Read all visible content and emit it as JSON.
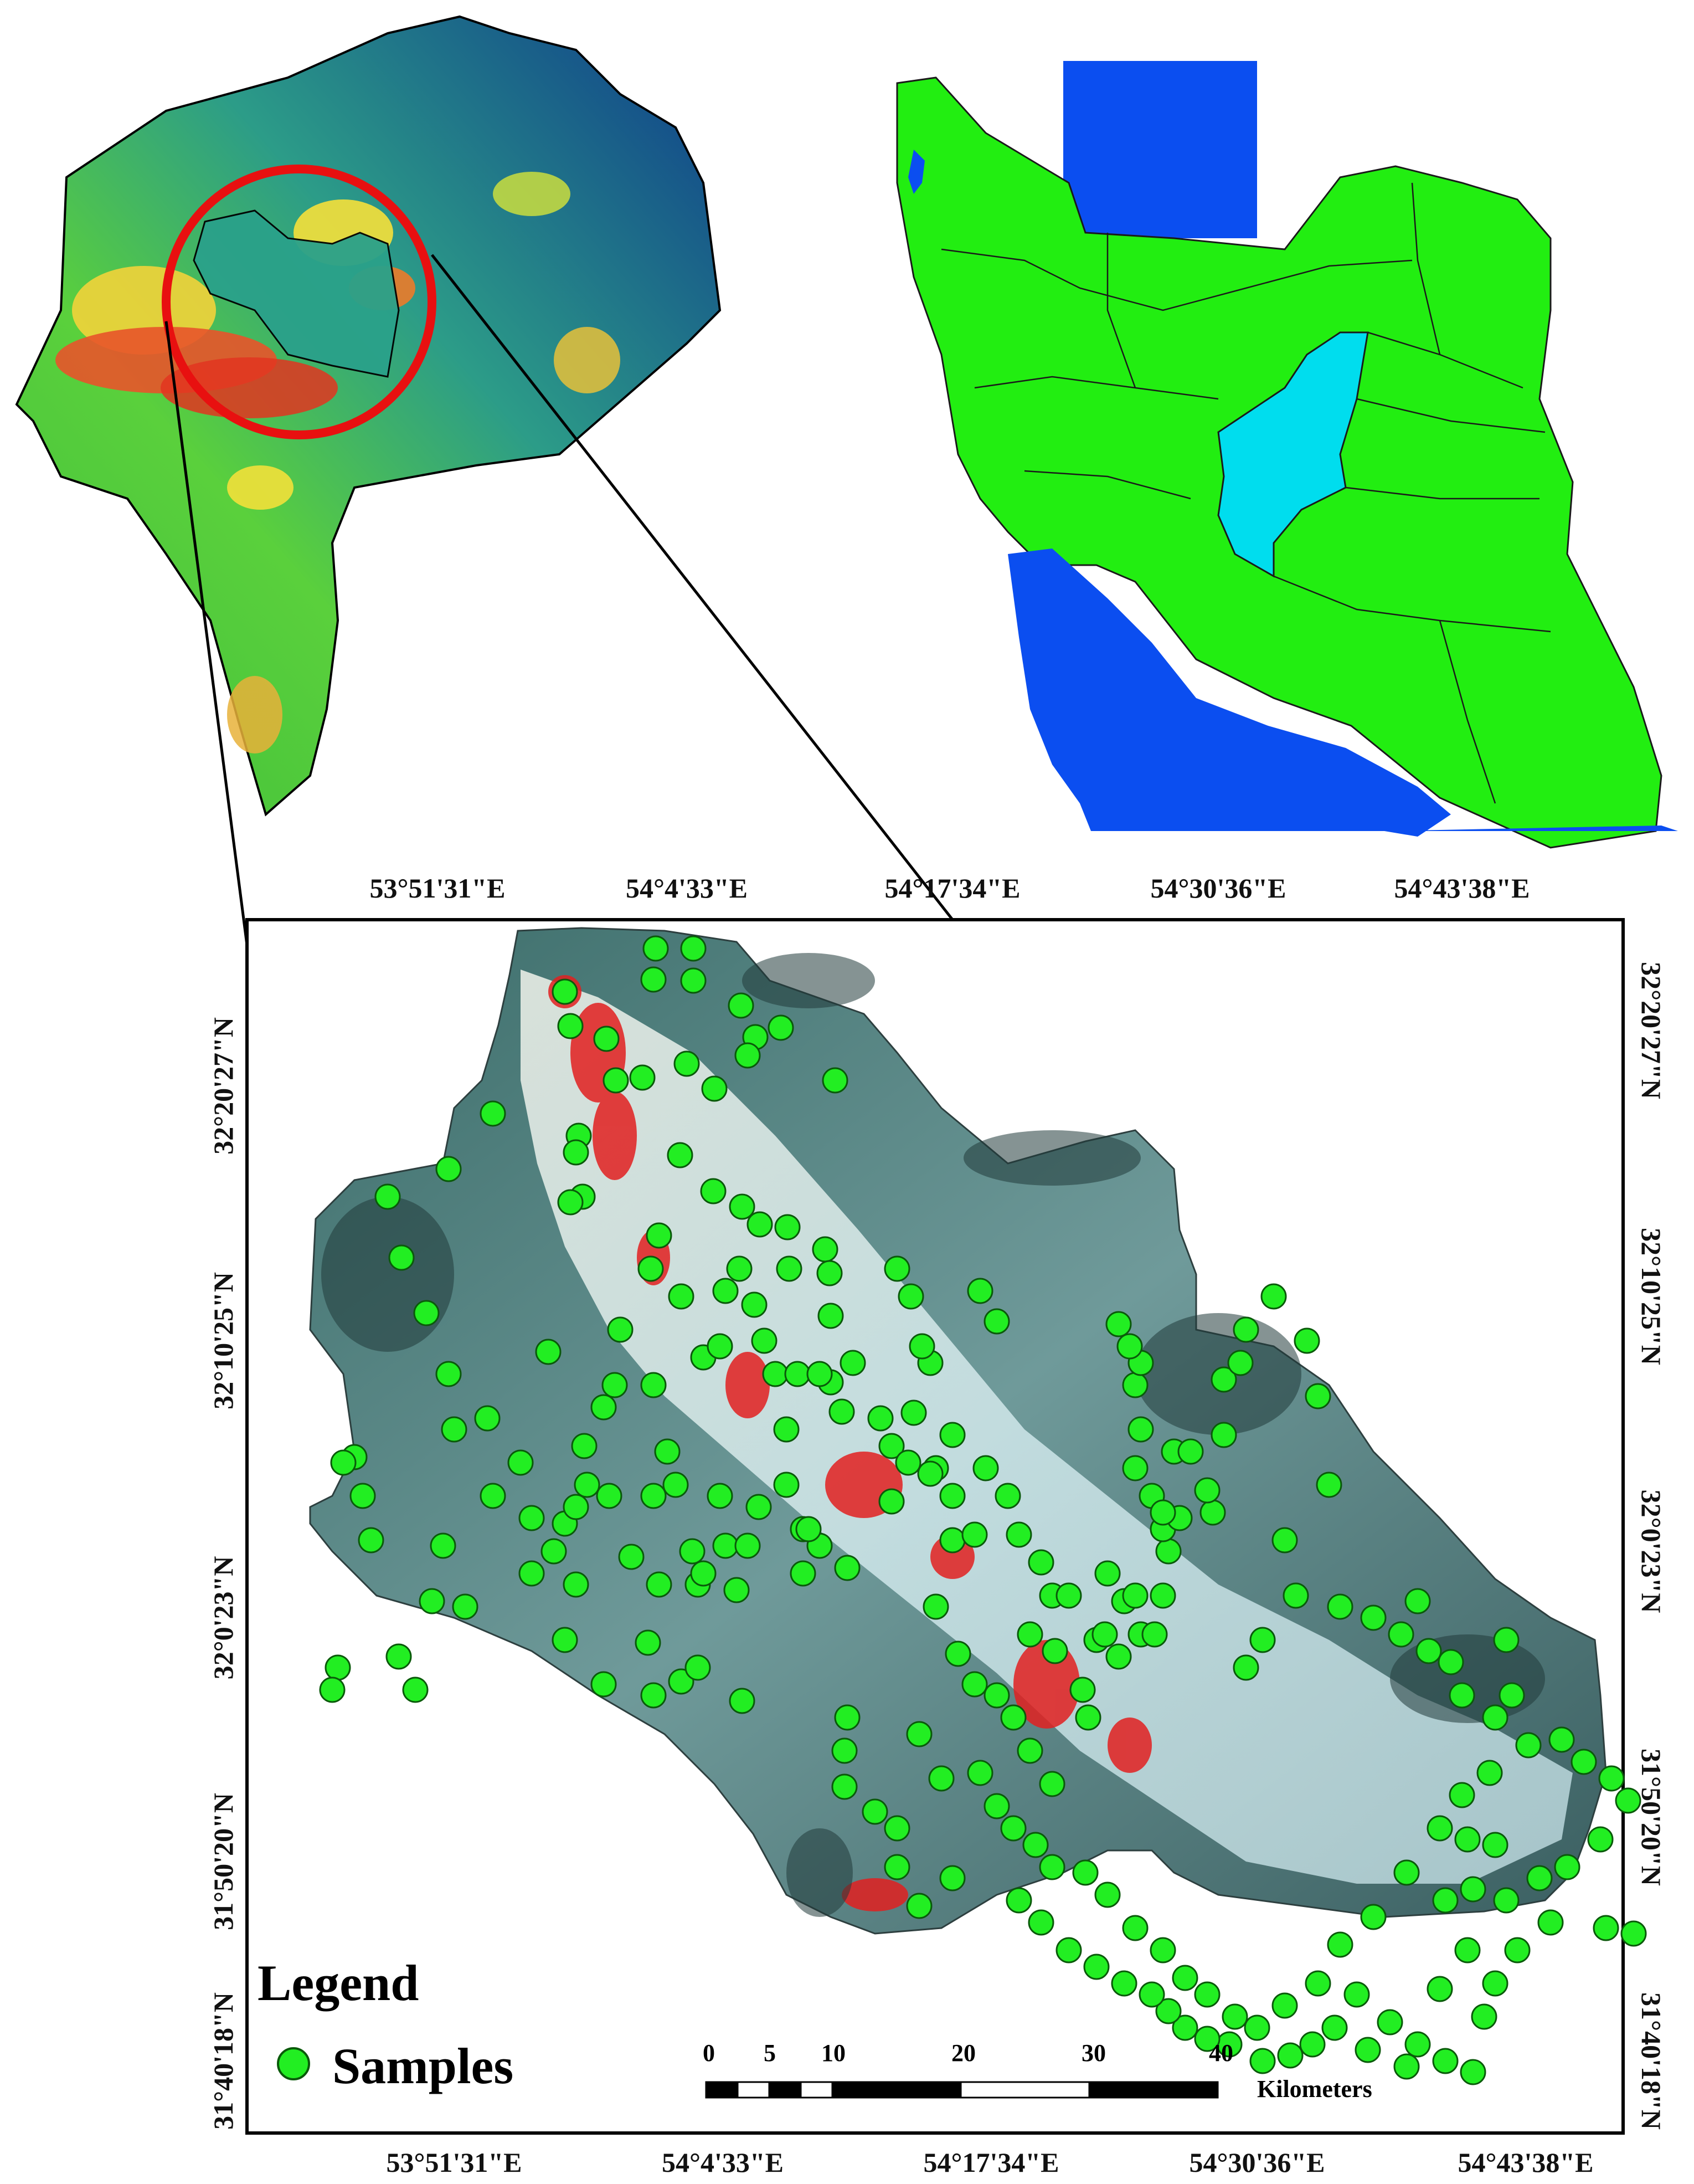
{
  "colors": {
    "province_fill": "#55c43a",
    "study_region_fill": "#1faa88",
    "country_fill": "#22ee11",
    "sea_fill": "#0b4ef0",
    "highlight_province": "#00ddee",
    "highlight_circle": "#e81010",
    "sample_point": "#22ee22",
    "urban_red": "#e22020",
    "frame": "#000000"
  },
  "main_map": {
    "top_lon_labels": [
      "53°51'31\"E",
      "54°4'33\"E",
      "54°17'34\"E",
      "54°30'36\"E",
      "54°43'38\"E"
    ],
    "bottom_lon_labels": [
      "53°51'31\"E",
      "54°4'33\"E",
      "54°17'34\"E",
      "54°30'36\"E",
      "54°43'38\"E"
    ],
    "left_lat_labels": [
      "32°20'27\"N",
      "32°10'25\"N",
      "32°0'23\"N",
      "31°50'20\"N",
      "31°40'18\"N"
    ],
    "right_lat_labels": [
      "32°20'27\"N",
      "32°10'25\"N",
      "32°0'23\"N",
      "31°50'20\"N",
      "31°40'18\"N"
    ]
  },
  "legend": {
    "title": "Legend",
    "samples_label": "Samples"
  },
  "scale_bar": {
    "ticks": [
      "0",
      "5",
      "10",
      "20",
      "30",
      "40"
    ],
    "unit": "Kilometers"
  },
  "samples": [
    [
      1184,
      1712
    ],
    [
      1252,
      1712
    ],
    [
      1180,
      1768
    ],
    [
      1252,
      1770
    ],
    [
      1364,
      1872
    ],
    [
      1350,
      1905
    ],
    [
      1020,
      1790
    ],
    [
      1030,
      1852
    ],
    [
      1095,
      1875
    ],
    [
      1112,
      1950
    ],
    [
      1160,
      1945
    ],
    [
      1240,
      1920
    ],
    [
      1290,
      1965
    ],
    [
      1508,
      1950
    ],
    [
      1410,
      1855
    ],
    [
      1338,
      1815
    ],
    [
      1045,
      2050
    ],
    [
      1040,
      2080
    ],
    [
      1052,
      2160
    ],
    [
      1030,
      2170
    ],
    [
      1228,
      2085
    ],
    [
      1288,
      2150
    ],
    [
      1340,
      2178
    ],
    [
      1422,
      2215
    ],
    [
      1372,
      2210
    ],
    [
      1335,
      2290
    ],
    [
      1425,
      2290
    ],
    [
      1490,
      2255
    ],
    [
      1498,
      2298
    ],
    [
      1500,
      2375
    ],
    [
      1620,
      2290
    ],
    [
      1190,
      2230
    ],
    [
      1175,
      2290
    ],
    [
      1230,
      2340
    ],
    [
      1310,
      2330
    ],
    [
      1362,
      2355
    ],
    [
      1380,
      2420
    ],
    [
      1500,
      2495
    ],
    [
      1520,
      2548
    ],
    [
      1590,
      2560
    ],
    [
      1680,
      2460
    ],
    [
      1645,
      2340
    ],
    [
      1665,
      2430
    ],
    [
      1770,
      2330
    ],
    [
      1800,
      2385
    ],
    [
      1610,
      2610
    ],
    [
      1640,
      2640
    ],
    [
      1690,
      2650
    ],
    [
      1400,
      2480
    ],
    [
      1270,
      2450
    ],
    [
      1180,
      2500
    ],
    [
      1090,
      2540
    ],
    [
      1055,
      2610
    ],
    [
      1060,
      2680
    ],
    [
      1020,
      2750
    ],
    [
      1140,
      2810
    ],
    [
      1190,
      2860
    ],
    [
      1260,
      2860
    ],
    [
      1170,
      2965
    ],
    [
      1230,
      3035
    ],
    [
      1270,
      2840
    ],
    [
      1330,
      2870
    ],
    [
      1420,
      2680
    ],
    [
      1450,
      2760
    ],
    [
      1450,
      2840
    ],
    [
      1480,
      2790
    ],
    [
      1530,
      2830
    ],
    [
      1610,
      2710
    ],
    [
      1720,
      2780
    ],
    [
      1820,
      2700
    ],
    [
      1780,
      2650
    ],
    [
      1690,
      2900
    ],
    [
      1730,
      2985
    ],
    [
      1760,
      3040
    ],
    [
      1800,
      3060
    ],
    [
      1860,
      2950
    ],
    [
      1900,
      2880
    ],
    [
      1980,
      2960
    ],
    [
      2020,
      2990
    ],
    [
      2060,
      2950
    ],
    [
      2030,
      2890
    ],
    [
      2085,
      2950
    ],
    [
      2110,
      2800
    ],
    [
      2100,
      2880
    ],
    [
      1995,
      2950
    ],
    [
      1905,
      2980
    ],
    [
      1955,
      3050
    ],
    [
      1965,
      3100
    ],
    [
      1830,
      3100
    ],
    [
      1860,
      3160
    ],
    [
      1900,
      3220
    ],
    [
      1770,
      3200
    ],
    [
      1700,
      3210
    ],
    [
      1660,
      3130
    ],
    [
      1530,
      3100
    ],
    [
      1525,
      3160
    ],
    [
      1525,
      3225
    ],
    [
      1580,
      3270
    ],
    [
      1620,
      3300
    ],
    [
      1620,
      3370
    ],
    [
      1660,
      3440
    ],
    [
      1720,
      3390
    ],
    [
      1340,
      3070
    ],
    [
      1260,
      3010
    ],
    [
      1180,
      3060
    ],
    [
      1090,
      3040
    ],
    [
      1000,
      2800
    ],
    [
      1020,
      2960
    ],
    [
      840,
      2900
    ],
    [
      960,
      2740
    ],
    [
      1040,
      2720
    ],
    [
      1100,
      2700
    ],
    [
      1205,
      2620
    ],
    [
      1300,
      2700
    ],
    [
      1370,
      2720
    ],
    [
      1460,
      2760
    ],
    [
      1300,
      2430
    ],
    [
      1120,
      2400
    ],
    [
      1110,
      2500
    ],
    [
      990,
      2440
    ],
    [
      820,
      2580
    ],
    [
      810,
      2480
    ],
    [
      770,
      2370
    ],
    [
      725,
      2270
    ],
    [
      700,
      2160
    ],
    [
      810,
      2110
    ],
    [
      890,
      2010
    ],
    [
      880,
      2560
    ],
    [
      940,
      2640
    ],
    [
      890,
      2700
    ],
    [
      960,
      2840
    ],
    [
      1040,
      2860
    ],
    [
      640,
      2630
    ],
    [
      655,
      2700
    ],
    [
      670,
      2780
    ],
    [
      800,
      2790
    ],
    [
      780,
      2890
    ],
    [
      720,
      2990
    ],
    [
      750,
      3050
    ],
    [
      610,
      3010
    ],
    [
      600,
      3050
    ],
    [
      620,
      2640
    ],
    [
      1180,
      2700
    ],
    [
      1220,
      2680
    ],
    [
      1250,
      2800
    ],
    [
      1310,
      2790
    ],
    [
      1350,
      2790
    ],
    [
      1420,
      2580
    ],
    [
      1440,
      2480
    ],
    [
      1480,
      2480
    ],
    [
      1540,
      2460
    ],
    [
      1650,
      2550
    ],
    [
      1720,
      2590
    ],
    [
      1680,
      2660
    ],
    [
      1720,
      2700
    ],
    [
      1760,
      2770
    ],
    [
      1840,
      2770
    ],
    [
      1880,
      2820
    ],
    [
      1930,
      2880
    ],
    [
      2000,
      2840
    ],
    [
      2050,
      2880
    ],
    [
      2100,
      2760
    ],
    [
      2130,
      2740
    ],
    [
      2190,
      2730
    ],
    [
      2180,
      2690
    ],
    [
      2120,
      2620
    ],
    [
      2060,
      2580
    ],
    [
      2050,
      2500
    ],
    [
      2060,
      2460
    ],
    [
      2040,
      2430
    ],
    [
      2020,
      2390
    ],
    [
      2050,
      2650
    ],
    [
      2080,
      2700
    ],
    [
      2100,
      2730
    ],
    [
      2150,
      2620
    ],
    [
      2210,
      2590
    ],
    [
      2210,
      2490
    ],
    [
      2240,
      2460
    ],
    [
      2250,
      2400
    ],
    [
      2300,
      2340
    ],
    [
      2360,
      2420
    ],
    [
      2380,
      2520
    ],
    [
      2400,
      2680
    ],
    [
      2320,
      2780
    ],
    [
      2340,
      2880
    ],
    [
      2280,
      2960
    ],
    [
      2250,
      3010
    ],
    [
      2420,
      2900
    ],
    [
      2480,
      2920
    ],
    [
      2530,
      2950
    ],
    [
      2560,
      2890
    ],
    [
      2580,
      2980
    ],
    [
      2620,
      3000
    ],
    [
      2640,
      3060
    ],
    [
      2700,
      3100
    ],
    [
      2730,
      3060
    ],
    [
      2720,
      2960
    ],
    [
      2690,
      3200
    ],
    [
      2640,
      3240
    ],
    [
      2600,
      3300
    ],
    [
      2650,
      3320
    ],
    [
      2700,
      3330
    ],
    [
      2760,
      3150
    ],
    [
      2820,
      3140
    ],
    [
      2860,
      3180
    ],
    [
      2910,
      3210
    ],
    [
      2940,
      3250
    ],
    [
      2890,
      3320
    ],
    [
      2830,
      3370
    ],
    [
      2780,
      3390
    ],
    [
      2720,
      3430
    ],
    [
      2660,
      3410
    ],
    [
      2610,
      3430
    ],
    [
      2540,
      3380
    ],
    [
      2480,
      3460
    ],
    [
      2420,
      3510
    ],
    [
      2380,
      3580
    ],
    [
      2320,
      3620
    ],
    [
      2270,
      3660
    ],
    [
      2230,
      3640
    ],
    [
      2180,
      3600
    ],
    [
      2140,
      3570
    ],
    [
      2100,
      3520
    ],
    [
      2050,
      3480
    ],
    [
      2000,
      3420
    ],
    [
      1960,
      3380
    ],
    [
      1900,
      3370
    ],
    [
      1870,
      3330
    ],
    [
      1830,
      3300
    ],
    [
      1800,
      3260
    ],
    [
      2450,
      3600
    ],
    [
      2510,
      3650
    ],
    [
      2560,
      3690
    ],
    [
      2610,
      3720
    ],
    [
      2660,
      3740
    ],
    [
      2540,
      3730
    ],
    [
      2470,
      3700
    ],
    [
      2410,
      3660
    ],
    [
      2370,
      3690
    ],
    [
      2330,
      3710
    ],
    [
      2280,
      3720
    ],
    [
      2220,
      3690
    ],
    [
      2180,
      3680
    ],
    [
      2140,
      3660
    ],
    [
      2110,
      3630
    ],
    [
      2080,
      3600
    ],
    [
      2030,
      3580
    ],
    [
      1980,
      3550
    ],
    [
      1930,
      3520
    ],
    [
      1880,
      3470
    ],
    [
      1840,
      3430
    ],
    [
      2900,
      3480
    ],
    [
      2950,
      3490
    ],
    [
      2800,
      3470
    ],
    [
      2740,
      3520
    ],
    [
      2700,
      3580
    ],
    [
      2680,
      3640
    ],
    [
      2600,
      3590
    ],
    [
      2650,
      3520
    ]
  ]
}
